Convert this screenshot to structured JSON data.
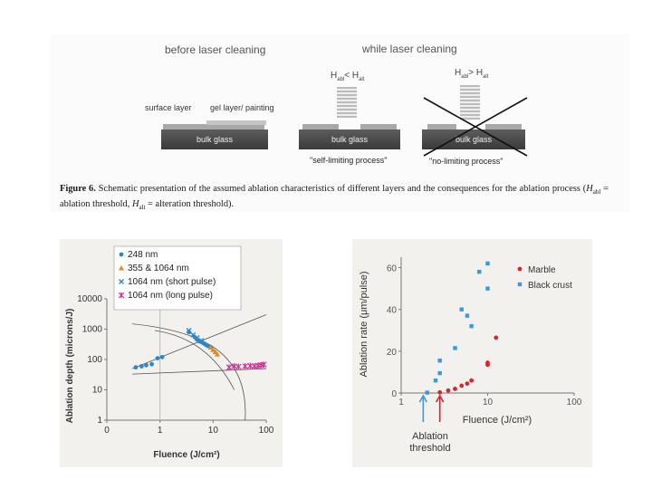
{
  "figure6": {
    "heading_before": "before laser cleaning",
    "heading_while": "while laser cleaning",
    "label_surface_layer": "surface layer",
    "label_gel_layer": "gel layer/ painting",
    "glass_label_1": "bulk glass",
    "glass_label_2": "bulk glass",
    "glass_label_3": "bulk glass",
    "threshold_1": "H",
    "threshold_1_sub_a": "abl",
    "threshold_1_op": "< H",
    "threshold_1_sub_b": "alt",
    "threshold_2": "H",
    "threshold_2_sub_a": "abl",
    "threshold_2_op": "> H",
    "threshold_2_sub_b": "alt",
    "process_1": "\"self-limiting process\"",
    "process_2": "\"no-limiting process\"",
    "caption_label": "Figure 6.",
    "caption_text_1": "Schematic presentation of the assumed ablation characteristics of different layers and the consequences for the ablation process (",
    "caption_habl": "H",
    "caption_habl_sub": "abl",
    "caption_text_2": " = ablation threshold, ",
    "caption_halt": "H",
    "caption_halt_sub": "alt",
    "caption_text_3": " = alteration threshold)."
  },
  "colors": {
    "blue": "#2e86c8",
    "orange": "#e08a2a",
    "magenta": "#cc3399",
    "red": "#d7262b",
    "lightblue": "#3a9ad9",
    "axis": "#666666",
    "chart_bg": "#f3f1ee"
  },
  "chart_data": [
    {
      "type": "scatter",
      "xlabel": "Fluence (J/cm²)",
      "ylabel": "Ablation depth (microns/J)",
      "xscale": "log",
      "yscale": "log",
      "xlim": [
        0.1,
        100
      ],
      "ylim": [
        1,
        10000
      ],
      "xticks": [
        "0",
        "1",
        "10",
        "100"
      ],
      "yticks": [
        "1",
        "10",
        "100",
        "1000",
        "10000"
      ],
      "grid": false,
      "legend_position": "top",
      "series": [
        {
          "name": "248 nm",
          "marker": "circle",
          "color": "#2e86c8",
          "points": [
            [
              0.35,
              55
            ],
            [
              0.45,
              60
            ],
            [
              0.55,
              65
            ],
            [
              0.7,
              70
            ],
            [
              0.9,
              110
            ],
            [
              1.1,
              120
            ],
            [
              3.5,
              800
            ],
            [
              4.5,
              550
            ],
            [
              5,
              450
            ],
            [
              5.5,
              400
            ],
            [
              6,
              380
            ],
            [
              6.5,
              350
            ],
            [
              7,
              320
            ],
            [
              7.5,
              300
            ],
            [
              8,
              280
            ],
            [
              9,
              260
            ]
          ]
        },
        {
          "name": "355 & 1064 nm",
          "marker": "triangle",
          "color": "#e08a2a",
          "points": [
            [
              9,
              250
            ],
            [
              10,
              210
            ],
            [
              11,
              180
            ],
            [
              12,
              150
            ]
          ]
        },
        {
          "name": "1064 nm (short pulse)",
          "marker": "x",
          "color": "#2e86c8",
          "points": [
            [
              3.5,
              900
            ],
            [
              4.2,
              650
            ],
            [
              5,
              520
            ],
            [
              6,
              420
            ]
          ]
        },
        {
          "name": "1064 nm (long pulse)",
          "marker": "star",
          "color": "#cc3399",
          "points": [
            [
              20,
              55
            ],
            [
              25,
              60
            ],
            [
              30,
              58
            ],
            [
              40,
              60
            ],
            [
              50,
              62
            ],
            [
              60,
              60
            ],
            [
              70,
              63
            ],
            [
              80,
              65
            ],
            [
              90,
              68
            ]
          ]
        }
      ]
    },
    {
      "type": "scatter",
      "xlabel": "Fluence (J/cm²)",
      "ylabel": "Ablation rate (μm/pulse)",
      "xscale": "log",
      "xlim": [
        1,
        100
      ],
      "ylim": [
        0,
        65
      ],
      "xticks": [
        "1",
        "10",
        "100"
      ],
      "yticks": [
        "0",
        "20",
        "40",
        "60"
      ],
      "grid": false,
      "legend_position": "top-right",
      "annotation": "Ablation\nthreshold",
      "series": [
        {
          "name": "Marble",
          "marker": "circle",
          "color": "#d7262b",
          "points": [
            [
              2.8,
              0.3
            ],
            [
              3.5,
              1.2
            ],
            [
              4.2,
              2
            ],
            [
              5,
              3.5
            ],
            [
              5.8,
              4.5
            ],
            [
              6.5,
              6
            ],
            [
              10,
              13.5
            ],
            [
              10,
              14.5
            ],
            [
              12.5,
              26.5
            ]
          ]
        },
        {
          "name": "Black crust",
          "marker": "square",
          "color": "#3a9ad9",
          "points": [
            [
              2,
              0.2
            ],
            [
              2.5,
              6
            ],
            [
              2.8,
              9.5
            ],
            [
              2.8,
              15.5
            ],
            [
              4.2,
              21.5
            ],
            [
              5,
              40
            ],
            [
              5.8,
              37
            ],
            [
              6.5,
              32
            ],
            [
              8,
              58
            ],
            [
              10,
              50
            ],
            [
              10,
              62
            ]
          ]
        }
      ]
    }
  ]
}
